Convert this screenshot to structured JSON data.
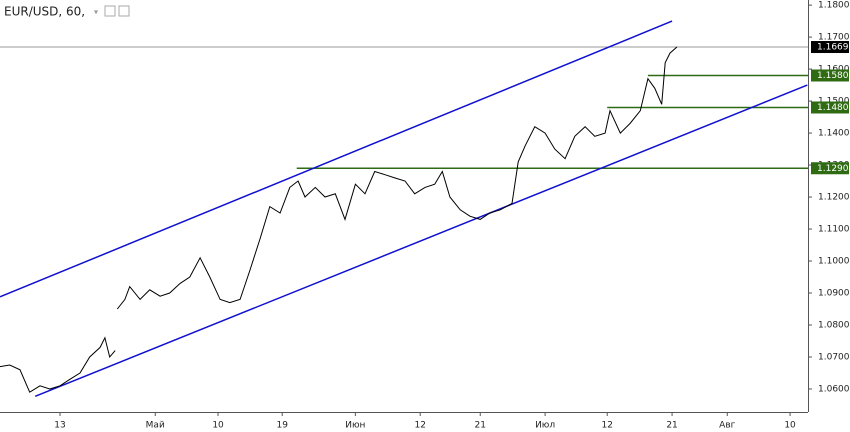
{
  "chart_data": {
    "type": "line",
    "title": "EUR/USD, 60,",
    "color": "#000000",
    "x": [
      -8.7,
      -7.3,
      -5.8,
      -4.4,
      -2.9,
      -1.5,
      0,
      1.4,
      2.9,
      4.3,
      5.8,
      6.5,
      7.2,
      8.0,
      8.1,
      8.3,
      9.4,
      10.1,
      11.6,
      13.0,
      14.5,
      15.9,
      17.4,
      18.8,
      20.3,
      21.7,
      23.2,
      24.6,
      26.1,
      27.5,
      29.0,
      30.4,
      31.9,
      33.3,
      34.5,
      35.5,
      37.0,
      38.4,
      39.9,
      41.3,
      42.8,
      44.2,
      45.6,
      47.1,
      48.5,
      50.0,
      51.4,
      52.9,
      54.3,
      55.4,
      56.5,
      58.0,
      59.4,
      60.9,
      62.3,
      63.8,
      65.5,
      66.4,
      67.4,
      68.8,
      70.3,
      71.7,
      73.2,
      74.6,
      76.1,
      77.5,
      79.0,
      79.7,
      81.2,
      82.6,
      84.1,
      85.2,
      86.2,
      87.2,
      87.7,
      88.4,
      89.4
    ],
    "values": [
      1.067,
      1.0675,
      1.066,
      1.059,
      1.061,
      1.06,
      1.061,
      1.063,
      1.065,
      1.07,
      1.073,
      1.076,
      1.07,
      1.072,
      null,
      1.085,
      1.088,
      1.092,
      1.088,
      1.091,
      1.089,
      1.09,
      1.093,
      1.095,
      1.101,
      1.095,
      1.088,
      1.087,
      1.088,
      1.097,
      1.107,
      1.117,
      1.115,
      1.123,
      1.125,
      1.12,
      1.123,
      1.12,
      1.121,
      1.113,
      1.124,
      1.121,
      1.128,
      1.127,
      1.126,
      1.125,
      1.121,
      1.123,
      1.124,
      1.128,
      1.12,
      1.116,
      1.114,
      1.113,
      1.115,
      1.116,
      1.118,
      1.131,
      1.136,
      1.142,
      1.14,
      1.135,
      1.132,
      1.139,
      1.142,
      1.139,
      1.14,
      1.147,
      1.14,
      1.143,
      1.147,
      1.157,
      1.154,
      1.149,
      1.162,
      1.165,
      1.1669
    ],
    "channels": [
      {
        "color": "#1010d0",
        "x": [
          -8.7,
          88.7
        ],
        "values": [
          1.0888,
          1.175
        ]
      },
      {
        "color": "#1010d0",
        "x": [
          -3.6,
          108.3
        ],
        "values": [
          1.0577,
          1.155
        ]
      }
    ],
    "levels": [
      {
        "value": 1.1669,
        "label": "1.1669",
        "x_start": -8.7,
        "color": "#9a9a9a",
        "label_color": "#000000"
      },
      {
        "value": 1.158,
        "label": "1.1580",
        "x_start": 85.2,
        "color": "#2e6b12",
        "label_color": "#2e6b12"
      },
      {
        "value": 1.148,
        "label": "1.1480",
        "x_start": 79.3,
        "color": "#2e6b12",
        "label_color": "#2e6b12"
      },
      {
        "value": 1.129,
        "label": "1.1290",
        "x_start": 34.3,
        "color": "#2e6b12",
        "label_color": "#2e6b12"
      }
    ],
    "xlim": [
      -8.7,
      108.4
    ],
    "xticks": [
      {
        "value": 0,
        "label": "13"
      },
      {
        "value": 13.8,
        "label": "Май"
      },
      {
        "value": 22.9,
        "label": "10"
      },
      {
        "value": 32.2,
        "label": "19"
      },
      {
        "value": 42.8,
        "label": "Июн"
      },
      {
        "value": 52.2,
        "label": "12"
      },
      {
        "value": 60.9,
        "label": "21"
      },
      {
        "value": 70.3,
        "label": "Июл"
      },
      {
        "value": 79.3,
        "label": "12"
      },
      {
        "value": 88.7,
        "label": "21"
      },
      {
        "value": 96.7,
        "label": "Авг"
      },
      {
        "value": 105.8,
        "label": "10"
      }
    ],
    "ylim": [
      1.0528,
      1.1816
    ],
    "yticks": [
      {
        "value": 1.06,
        "label": "1.0600"
      },
      {
        "value": 1.07,
        "label": "1.0700"
      },
      {
        "value": 1.08,
        "label": "1.0800"
      },
      {
        "value": 1.09,
        "label": "1.0900"
      },
      {
        "value": 1.1,
        "label": "1.1000"
      },
      {
        "value": 1.11,
        "label": "1.1100"
      },
      {
        "value": 1.12,
        "label": "1.1200"
      },
      {
        "value": 1.13,
        "label": "1.1300"
      },
      {
        "value": 1.14,
        "label": "1.1400"
      },
      {
        "value": 1.15,
        "label": "1.1500"
      },
      {
        "value": 1.16,
        "label": "1.1600"
      },
      {
        "value": 1.17,
        "label": "1.1700"
      },
      {
        "value": 1.18,
        "label": "1.1800"
      }
    ]
  }
}
